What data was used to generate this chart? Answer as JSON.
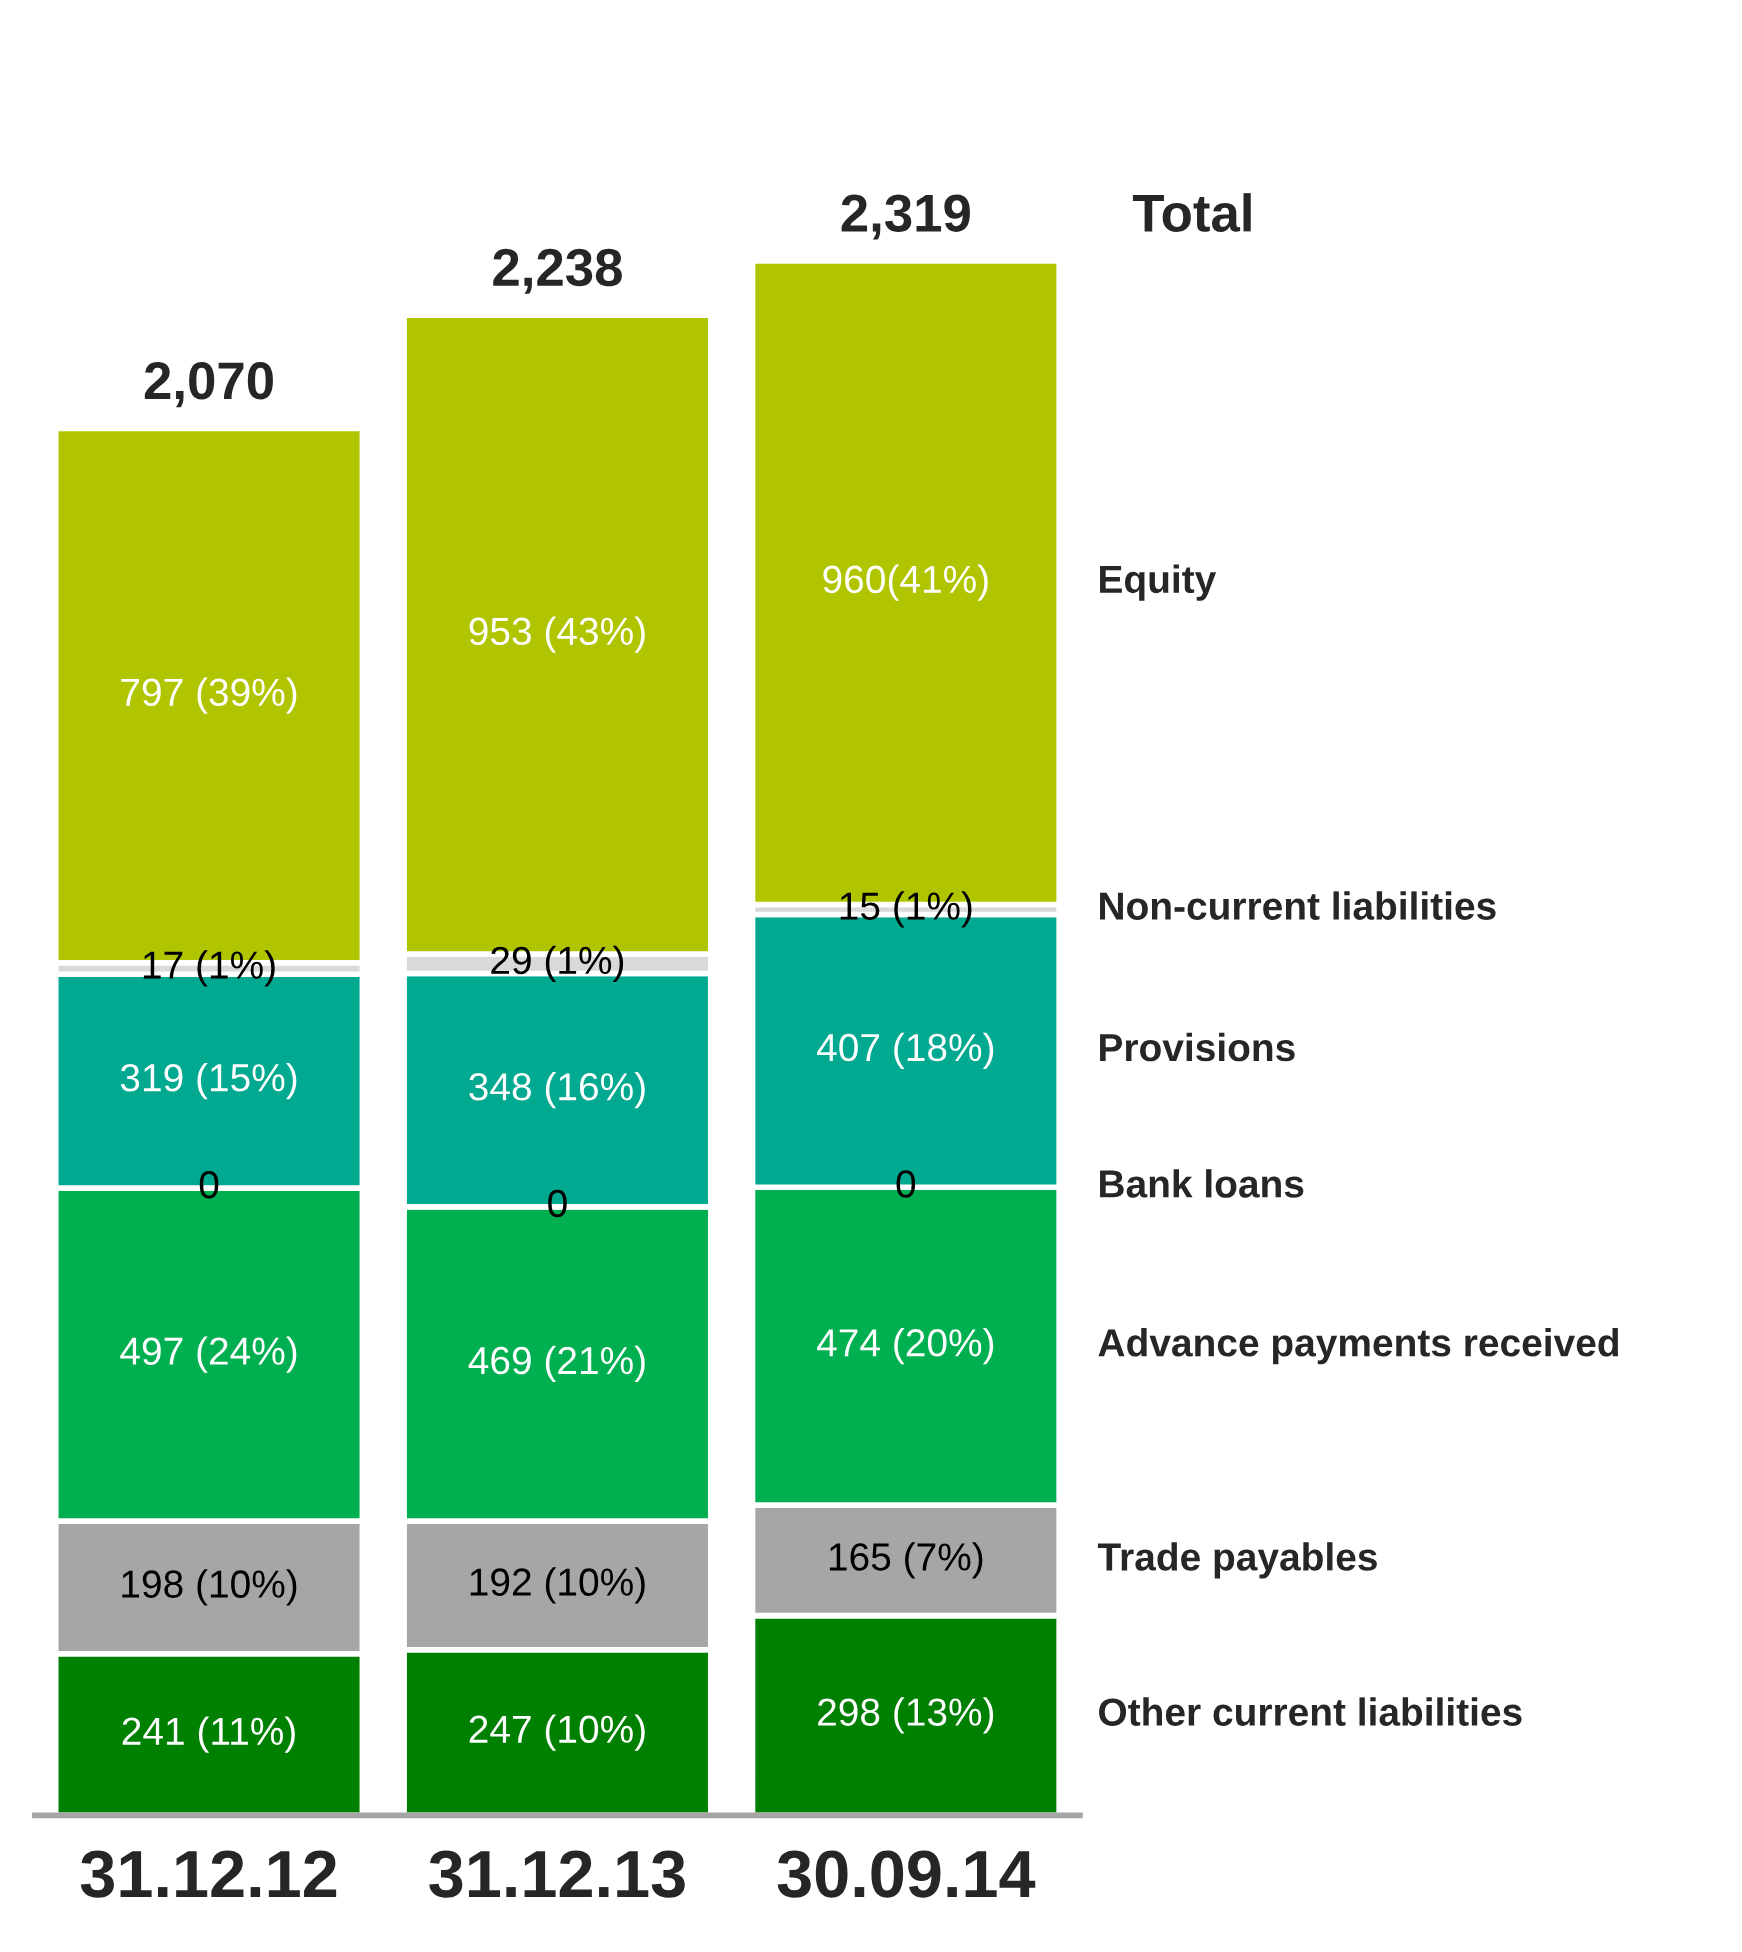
{
  "chart_data": {
    "type": "bar",
    "stacked": true,
    "categories": [
      "31.12.12",
      "31.12.13",
      "30.09.14"
    ],
    "series": [
      {
        "name": "Other current liabilities",
        "color": "#008000",
        "values": [
          241,
          247,
          298
        ],
        "value_labels": [
          "241 (11%)",
          "247 (10%)",
          "298 (13%)"
        ]
      },
      {
        "name": "Trade payables",
        "color": "#a6a6a6",
        "values": [
          198,
          192,
          165
        ],
        "value_labels": [
          "198 (10%)",
          "192 (10%)",
          "165 (7%)"
        ]
      },
      {
        "name": "Advance payments received",
        "color": "#00b050",
        "values": [
          497,
          469,
          474
        ],
        "value_labels": [
          "497 (24%)",
          "469 (21%)",
          "474 (20%)"
        ]
      },
      {
        "name": "Bank loans",
        "color": "#ffffff",
        "values": [
          0,
          0,
          0
        ],
        "value_labels": [
          "0",
          "0",
          "0"
        ]
      },
      {
        "name": "Provisions",
        "color": "#00a98f",
        "values": [
          319,
          348,
          407
        ],
        "value_labels": [
          "319 (15%)",
          "348 (16%)",
          "407 (18%)"
        ]
      },
      {
        "name": "Non-current liabilities",
        "color": "#d9d9d9",
        "values": [
          17,
          29,
          15
        ],
        "value_labels": [
          "17 (1%)",
          "29 (1%)",
          "15 (1%)"
        ]
      },
      {
        "name": "Equity",
        "color": "#b0c400",
        "values": [
          797,
          953,
          960
        ],
        "value_labels": [
          "797 (39%)",
          "953 (43%)",
          "960(41%)"
        ]
      }
    ],
    "totals": [
      "2,070",
      "2,238",
      "2,319"
    ],
    "annotations": [
      "Total"
    ],
    "grid": false,
    "legend": "right"
  }
}
